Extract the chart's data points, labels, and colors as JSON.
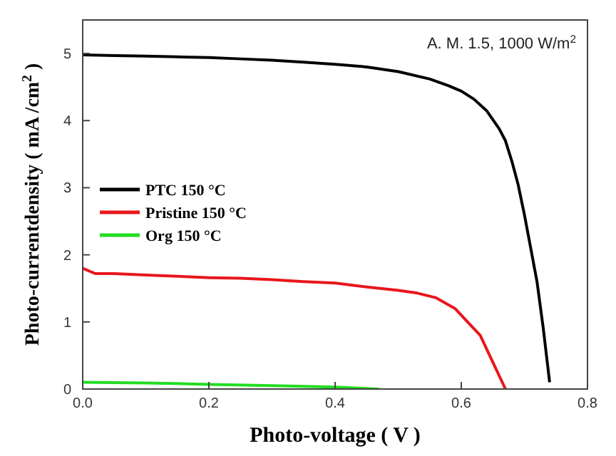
{
  "chart_data": {
    "type": "line",
    "xlabel": "Photo-voltage ( V )",
    "ylabel": "Photo-currentdensity ( mA /cm$^{2}$ )",
    "annotations": [
      "A. M. 1.5, 1000 W/m$^{2}$"
    ],
    "xlim": [
      0,
      0.8
    ],
    "xticks": [
      {
        "value": 0,
        "label": "0.0"
      },
      0.2,
      0.4,
      0.6,
      0.8
    ],
    "ylim": [
      0,
      5.5
    ],
    "yticks": [
      0,
      1,
      2,
      3,
      4,
      5
    ],
    "grid": false,
    "legend": "left",
    "line_style": "solid",
    "marker": "none",
    "series": [
      {
        "name": "PTC 150 °C",
        "color": "#000000",
        "x": [
          0,
          0.05,
          0.1,
          0.15,
          0.2,
          0.25,
          0.3,
          0.35,
          0.4,
          0.45,
          0.5,
          0.55,
          0.58,
          0.6,
          0.62,
          0.64,
          0.66,
          0.67,
          0.68,
          0.69,
          0.7,
          0.71,
          0.72,
          0.73,
          0.74
        ],
        "values": [
          4.98,
          4.97,
          4.96,
          4.95,
          4.94,
          4.92,
          4.9,
          4.87,
          4.84,
          4.8,
          4.73,
          4.62,
          4.52,
          4.44,
          4.32,
          4.15,
          3.88,
          3.7,
          3.4,
          3.05,
          2.6,
          2.1,
          1.6,
          0.9,
          0.1
        ]
      },
      {
        "name": "Pristine 150 °C",
        "color": "#e8161b",
        "x": [
          0,
          0.02,
          0.05,
          0.1,
          0.15,
          0.2,
          0.25,
          0.3,
          0.35,
          0.4,
          0.45,
          0.5,
          0.53,
          0.56,
          0.59,
          0.61,
          0.63,
          0.65,
          0.67
        ],
        "values": [
          1.8,
          1.72,
          1.72,
          1.7,
          1.68,
          1.66,
          1.65,
          1.63,
          1.6,
          1.58,
          1.52,
          1.47,
          1.43,
          1.36,
          1.2,
          1.0,
          0.8,
          0.4,
          0
        ]
      },
      {
        "name": "Org 150 °C",
        "color": "#22dd22",
        "x": [
          0,
          0.1,
          0.2,
          0.3,
          0.4,
          0.47
        ],
        "values": [
          0.1,
          0.09,
          0.07,
          0.05,
          0.03,
          0
        ]
      }
    ]
  }
}
